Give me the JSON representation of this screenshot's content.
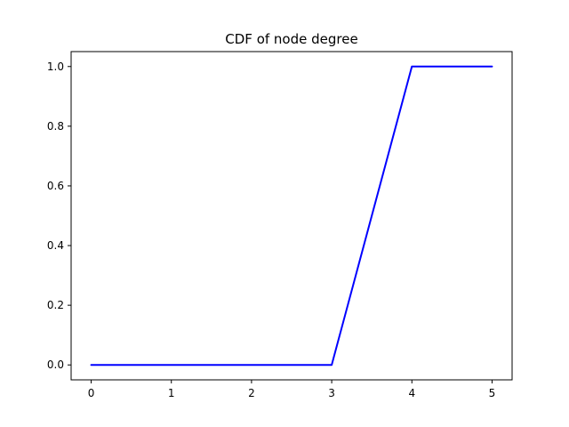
{
  "chart_data": {
    "type": "line",
    "title": "CDF of node degree",
    "xlabel": "",
    "ylabel": "",
    "xlim": [
      -0.25,
      5.25
    ],
    "ylim": [
      -0.05,
      1.05
    ],
    "x_ticks": [
      0,
      1,
      2,
      3,
      4,
      5
    ],
    "x_tick_labels": [
      "0",
      "1",
      "2",
      "3",
      "4",
      "5"
    ],
    "y_ticks": [
      0.0,
      0.2,
      0.4,
      0.6,
      0.8,
      1.0
    ],
    "y_tick_labels": [
      "0.0",
      "0.2",
      "0.4",
      "0.6",
      "0.8",
      "1.0"
    ],
    "grid": false,
    "series": [
      {
        "color": "#0000ff",
        "x": [
          0,
          1,
          2,
          3,
          4,
          5
        ],
        "y": [
          0.0,
          0.0,
          0.0,
          0.0,
          1.0,
          1.0
        ]
      }
    ]
  }
}
